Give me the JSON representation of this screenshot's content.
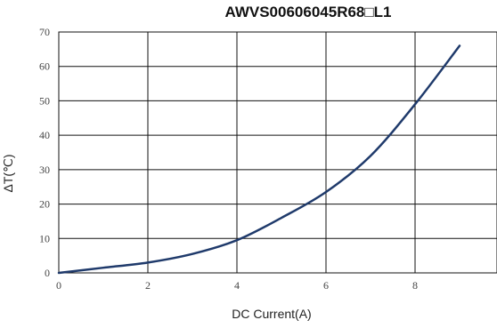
{
  "chart_data": {
    "type": "line",
    "title": "AWVS00606045R68□L1",
    "xlabel": "DC Current(A)",
    "ylabel": "ΔT(℃)",
    "xlim": [
      0,
      9
    ],
    "ylim": [
      0,
      70
    ],
    "xticks": [
      0,
      2,
      4,
      6,
      8
    ],
    "yticks": [
      0,
      10,
      20,
      30,
      40,
      50,
      60,
      70
    ],
    "grid": true,
    "series": [
      {
        "color": "#1f3a6b",
        "x": [
          0,
          1,
          2,
          3,
          4,
          5,
          6,
          7,
          8,
          9
        ],
        "y": [
          0,
          1.5,
          3,
          5.5,
          9.5,
          16,
          23.5,
          34,
          49,
          66
        ]
      }
    ]
  }
}
